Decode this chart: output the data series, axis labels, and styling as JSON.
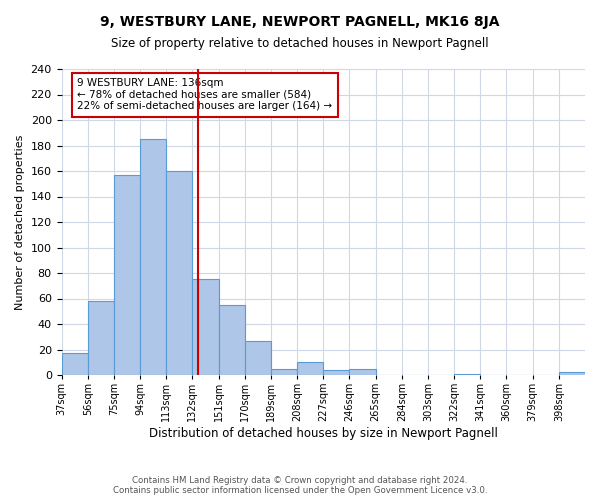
{
  "title": "9, WESTBURY LANE, NEWPORT PAGNELL, MK16 8JA",
  "subtitle": "Size of property relative to detached houses in Newport Pagnell",
  "xlabel": "Distribution of detached houses by size in Newport Pagnell",
  "ylabel": "Number of detached properties",
  "bar_edges": [
    37,
    56,
    75,
    94,
    113,
    132,
    151,
    170,
    189,
    208,
    227,
    246,
    265,
    284,
    303,
    322,
    341,
    360,
    379,
    398,
    417
  ],
  "bar_heights": [
    17,
    58,
    157,
    185,
    160,
    75,
    55,
    27,
    5,
    10,
    4,
    5,
    0,
    0,
    0,
    1,
    0,
    0,
    0,
    2
  ],
  "bar_color": "#aec6e8",
  "bar_edge_color": "#5b9bd5",
  "property_line_x": 136,
  "property_line_color": "#cc0000",
  "ylim": [
    0,
    240
  ],
  "annotation_title": "9 WESTBURY LANE: 136sqm",
  "annotation_line1": "← 78% of detached houses are smaller (584)",
  "annotation_line2": "22% of semi-detached houses are larger (164) →",
  "annotation_box_color": "#ffffff",
  "annotation_box_edge_color": "#cc0000",
  "footer_line1": "Contains HM Land Registry data © Crown copyright and database right 2024.",
  "footer_line2": "Contains public sector information licensed under the Open Government Licence v3.0.",
  "background_color": "#ffffff",
  "grid_color": "#d0d8e8"
}
